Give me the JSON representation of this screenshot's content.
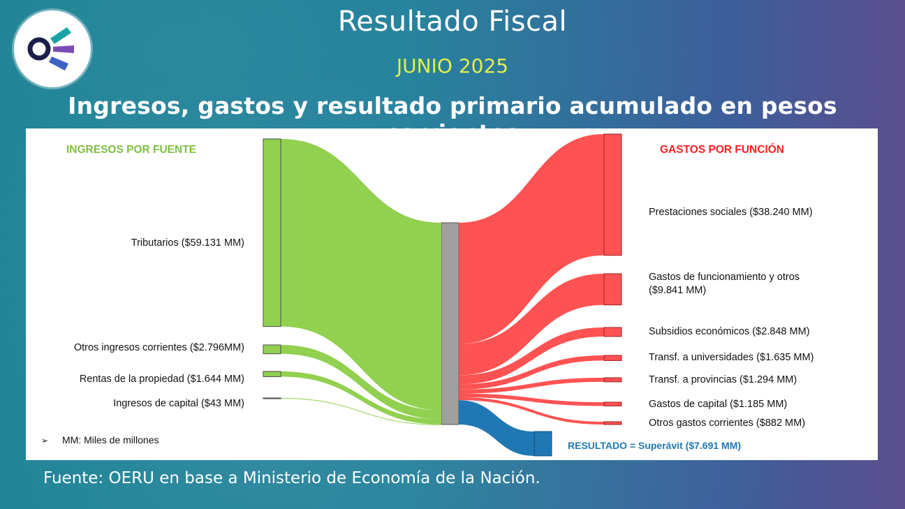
{
  "header": {
    "title": "Resultado Fiscal",
    "period": "JUNIO 2025",
    "subtitle": "Ingresos, gastos y resultado primario acumulado en pesos corrientes"
  },
  "footer": {
    "source": "Fuente: OERU en base a Ministerio de Economía de la Nación."
  },
  "colors": {
    "income": "#92d050",
    "expense": "#ff5252",
    "result": "#1f78b4",
    "center": "#a0a0a0",
    "income_title": "#7fbf3f",
    "expense_title": "#ff1f1f",
    "result_title": "#1f78b4"
  },
  "logo": {
    "icon": "oeru-logo-icon"
  },
  "chart_data": {
    "type": "sankey",
    "unit": "MM",
    "legend_note_bullet": "➢",
    "legend_note": "MM: Miles de millones",
    "income_title": "INGRESOS POR FUENTE",
    "expense_title": "GASTOS POR FUNCIÓN",
    "income": [
      {
        "label": "Tributarios ($59.131 MM)",
        "value": 59131
      },
      {
        "label": "Otros ingresos corrientes ($2.796MM)",
        "value": 2796
      },
      {
        "label": "Rentas de la propiedad ($1.644 MM)",
        "value": 1644
      },
      {
        "label": "Ingresos de capital ($43 MM)",
        "value": 43
      }
    ],
    "expenses": [
      {
        "label": "Prestaciones sociales ($38.240 MM)",
        "value": 38240
      },
      {
        "label": "Gastos de funcionamiento y otros ($9.841 MM)",
        "value": 9841
      },
      {
        "label": "Subsidios económicos ($2.848 MM)",
        "value": 2848
      },
      {
        "label": "Transf. a universidades ($1.635 MM)",
        "value": 1635
      },
      {
        "label": "Transf. a provincias ($1.294 MM)",
        "value": 1294
      },
      {
        "label": "Gastos de capital ($1.185 MM)",
        "value": 1185
      },
      {
        "label": "Otros gastos corrientes ($882 MM)",
        "value": 882
      }
    ],
    "result": {
      "label": "RESULTADO = Superávit ($7.691 MM)",
      "value": 7691
    }
  }
}
